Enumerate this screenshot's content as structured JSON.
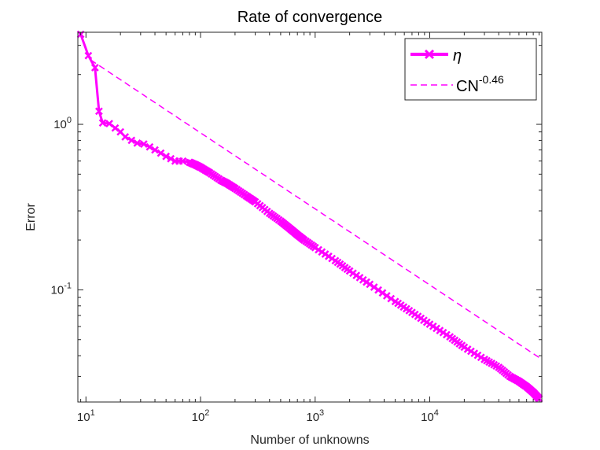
{
  "chart_data": {
    "type": "line",
    "title": "Rate of convergence",
    "xlabel": "Number of unknowns",
    "ylabel": "Error",
    "xscale": "log",
    "yscale": "log",
    "xlim": [
      8.5,
      95000
    ],
    "ylim": [
      0.021,
      3.6
    ],
    "grid": false,
    "legend_position": "top-right",
    "x_ticks": [
      {
        "value": 10,
        "base": "10",
        "exp": "1"
      },
      {
        "value": 100,
        "base": "10",
        "exp": "2"
      },
      {
        "value": 1000,
        "base": "10",
        "exp": "3"
      },
      {
        "value": 10000,
        "base": "10",
        "exp": "4"
      }
    ],
    "y_ticks": [
      {
        "value": 1,
        "base": "10",
        "exp": "0"
      },
      {
        "value": 0.1,
        "base": "10",
        "exp": "-1"
      }
    ],
    "series": [
      {
        "name": "η",
        "color": "#ff00ff",
        "style": "solid-x-markers",
        "x": [
          9,
          10.5,
          12,
          13,
          14,
          16,
          18,
          20,
          22,
          25,
          28,
          32,
          36,
          40,
          45,
          50,
          55,
          60,
          65,
          70,
          80,
          90,
          100,
          120,
          150,
          170,
          200,
          250,
          300,
          400,
          500,
          600,
          700,
          800,
          1000,
          1500,
          2000,
          3000,
          5000,
          7000,
          10000,
          15000,
          20000,
          30000,
          40000,
          50000,
          60000,
          70000,
          80000,
          90000
        ],
        "y": [
          3.5,
          2.6,
          2.2,
          1.2,
          1.02,
          1.01,
          0.95,
          0.9,
          0.84,
          0.8,
          0.77,
          0.76,
          0.73,
          0.7,
          0.67,
          0.64,
          0.62,
          0.6,
          0.6,
          0.6,
          0.59,
          0.57,
          0.55,
          0.51,
          0.46,
          0.44,
          0.41,
          0.37,
          0.34,
          0.29,
          0.26,
          0.235,
          0.215,
          0.2,
          0.18,
          0.15,
          0.13,
          0.108,
          0.085,
          0.073,
          0.062,
          0.052,
          0.045,
          0.038,
          0.034,
          0.03,
          0.028,
          0.026,
          0.024,
          0.022
        ]
      },
      {
        "name": "CN",
        "name_sup": "-0.46",
        "color": "#ff00ff",
        "style": "dashed",
        "x": [
          11,
          90000
        ],
        "y": [
          2.45,
          0.039
        ]
      }
    ]
  }
}
